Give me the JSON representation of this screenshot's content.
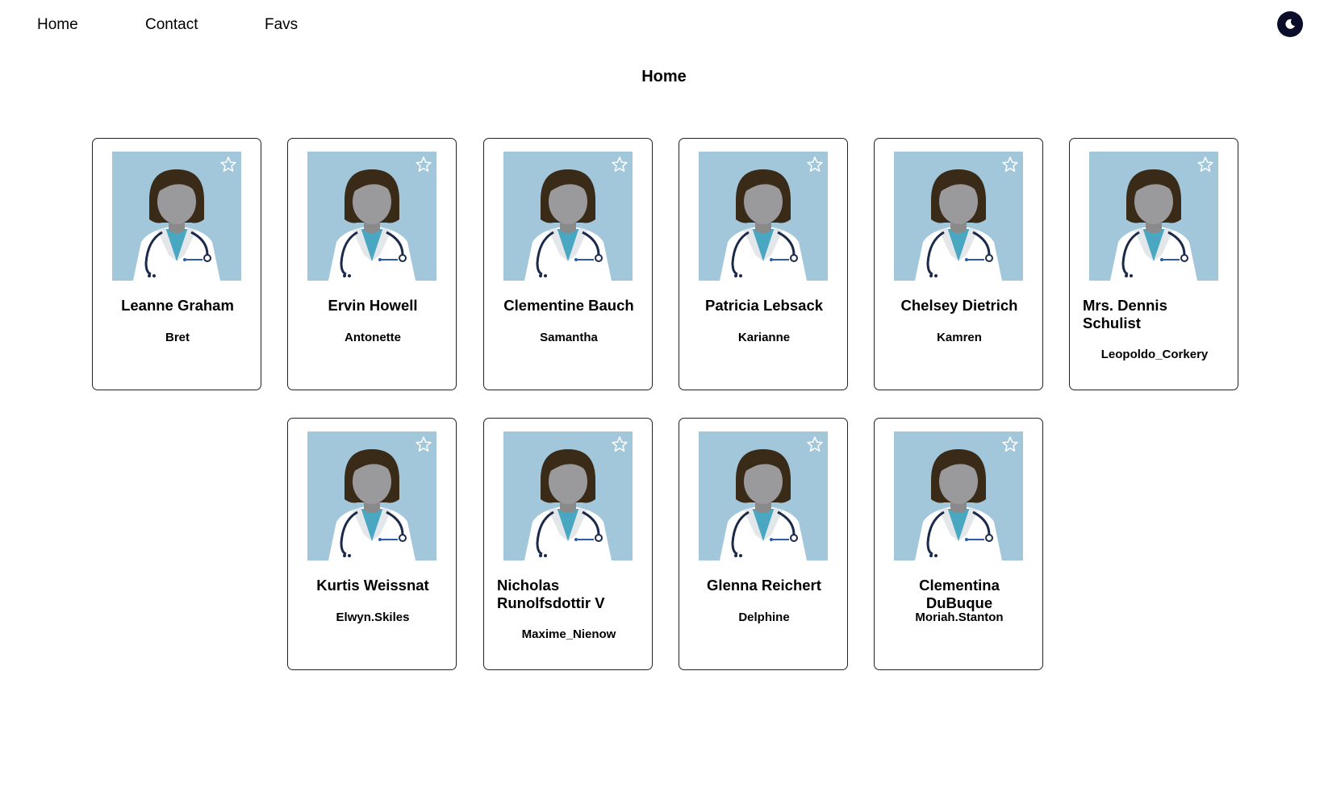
{
  "nav": {
    "links": [
      "Home",
      "Contact",
      "Favs"
    ]
  },
  "page": {
    "title": "Home"
  },
  "colors": {
    "avatar_bg": "#a2c7da",
    "toggle_bg": "#0a0c2a"
  },
  "icons": {
    "favorite": "star-outline-icon",
    "theme": "moon-icon"
  },
  "cards": [
    {
      "name": "Leanne Graham",
      "username": "Bret"
    },
    {
      "name": "Ervin Howell",
      "username": "Antonette"
    },
    {
      "name": "Clementine Bauch",
      "username": "Samantha"
    },
    {
      "name": "Patricia Lebsack",
      "username": "Karianne"
    },
    {
      "name": "Chelsey Dietrich",
      "username": "Kamren"
    },
    {
      "name": "Mrs. Dennis Schulist",
      "username": "Leopoldo_Corkery"
    },
    {
      "name": "Kurtis Weissnat",
      "username": "Elwyn.Skiles"
    },
    {
      "name": "Nicholas Runolfsdottir V",
      "username": "Maxime_Nienow"
    },
    {
      "name": "Glenna Reichert",
      "username": "Delphine"
    },
    {
      "name": "Clementina DuBuque",
      "username": "Moriah.Stanton"
    }
  ]
}
